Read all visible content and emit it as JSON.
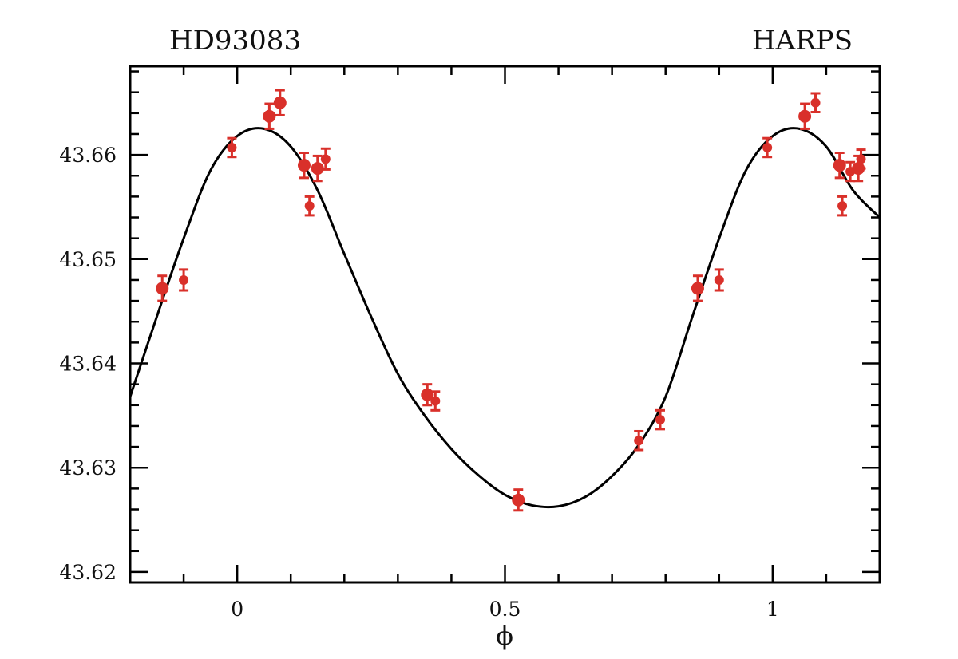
{
  "chart_data": {
    "type": "scatter",
    "title_left": "HD93083",
    "title_right": "HARPS",
    "xlabel": "ϕ",
    "ylabel": "",
    "xlim": [
      -0.2,
      1.2
    ],
    "ylim": [
      43.619,
      43.6685
    ],
    "xticks": [
      0,
      0.5,
      1
    ],
    "xtick_labels": [
      "0",
      "0.5",
      "1"
    ],
    "yticks": [
      43.62,
      43.63,
      43.64,
      43.65,
      43.66
    ],
    "ytick_labels": [
      "43.62",
      "43.63",
      "43.64",
      "43.65",
      "43.66"
    ],
    "grid": false,
    "point_color": "#d9302a",
    "curve_color": "#000000",
    "points": [
      {
        "x": -0.14,
        "y": 43.6472,
        "err": 0.0012,
        "large": true
      },
      {
        "x": -0.1,
        "y": 43.648,
        "err": 0.001,
        "large": false
      },
      {
        "x": -0.01,
        "y": 43.6607,
        "err": 0.0009,
        "large": false
      },
      {
        "x": 0.06,
        "y": 43.6637,
        "err": 0.0012,
        "large": true
      },
      {
        "x": 0.08,
        "y": 43.665,
        "err": 0.0012,
        "large": true
      },
      {
        "x": 0.125,
        "y": 43.659,
        "err": 0.0012,
        "large": true
      },
      {
        "x": 0.135,
        "y": 43.6551,
        "err": 0.0009,
        "large": false
      },
      {
        "x": 0.15,
        "y": 43.6587,
        "err": 0.0012,
        "large": true
      },
      {
        "x": 0.165,
        "y": 43.6596,
        "err": 0.001,
        "large": false
      },
      {
        "x": 0.355,
        "y": 43.637,
        "err": 0.001,
        "large": true
      },
      {
        "x": 0.37,
        "y": 43.6364,
        "err": 0.0009,
        "large": false
      },
      {
        "x": 0.525,
        "y": 43.6269,
        "err": 0.001,
        "large": true
      },
      {
        "x": 0.75,
        "y": 43.6326,
        "err": 0.0009,
        "large": false
      },
      {
        "x": 0.79,
        "y": 43.6346,
        "err": 0.0009,
        "large": false
      },
      {
        "x": 0.86,
        "y": 43.6472,
        "err": 0.0012,
        "large": true
      },
      {
        "x": 0.9,
        "y": 43.648,
        "err": 0.001,
        "large": false
      },
      {
        "x": 0.99,
        "y": 43.6607,
        "err": 0.0009,
        "large": false
      },
      {
        "x": 1.06,
        "y": 43.6637,
        "err": 0.0012,
        "large": true
      },
      {
        "x": 1.08,
        "y": 43.665,
        "err": 0.0009,
        "large": false
      },
      {
        "x": 1.125,
        "y": 43.659,
        "err": 0.0012,
        "large": true
      },
      {
        "x": 1.13,
        "y": 43.6551,
        "err": 0.0009,
        "large": false
      },
      {
        "x": 1.145,
        "y": 43.6584,
        "err": 0.0009,
        "large": false
      },
      {
        "x": 1.16,
        "y": 43.6587,
        "err": 0.0012,
        "large": true
      },
      {
        "x": 1.165,
        "y": 43.6596,
        "err": 0.0009,
        "large": false
      }
    ],
    "model_curve": [
      {
        "x": -0.2,
        "y": 43.6368
      },
      {
        "x": -0.15,
        "y": 43.6445
      },
      {
        "x": -0.1,
        "y": 43.652
      },
      {
        "x": -0.05,
        "y": 43.6585
      },
      {
        "x": 0.0,
        "y": 43.6618
      },
      {
        "x": 0.05,
        "y": 43.6625
      },
      {
        "x": 0.1,
        "y": 43.6608
      },
      {
        "x": 0.15,
        "y": 43.6566
      },
      {
        "x": 0.2,
        "y": 43.6505
      },
      {
        "x": 0.25,
        "y": 43.6445
      },
      {
        "x": 0.3,
        "y": 43.639
      },
      {
        "x": 0.35,
        "y": 43.635
      },
      {
        "x": 0.4,
        "y": 43.6318
      },
      {
        "x": 0.45,
        "y": 43.6293
      },
      {
        "x": 0.5,
        "y": 43.6274
      },
      {
        "x": 0.55,
        "y": 43.6264
      },
      {
        "x": 0.6,
        "y": 43.6263
      },
      {
        "x": 0.65,
        "y": 43.6272
      },
      {
        "x": 0.7,
        "y": 43.6292
      },
      {
        "x": 0.75,
        "y": 43.6322
      },
      {
        "x": 0.8,
        "y": 43.6368
      },
      {
        "x": 0.85,
        "y": 43.6445
      },
      {
        "x": 0.9,
        "y": 43.652
      },
      {
        "x": 0.95,
        "y": 43.6585
      },
      {
        "x": 1.0,
        "y": 43.6618
      },
      {
        "x": 1.05,
        "y": 43.6625
      },
      {
        "x": 1.1,
        "y": 43.6608
      },
      {
        "x": 1.15,
        "y": 43.6566
      },
      {
        "x": 1.2,
        "y": 43.654
      }
    ]
  }
}
